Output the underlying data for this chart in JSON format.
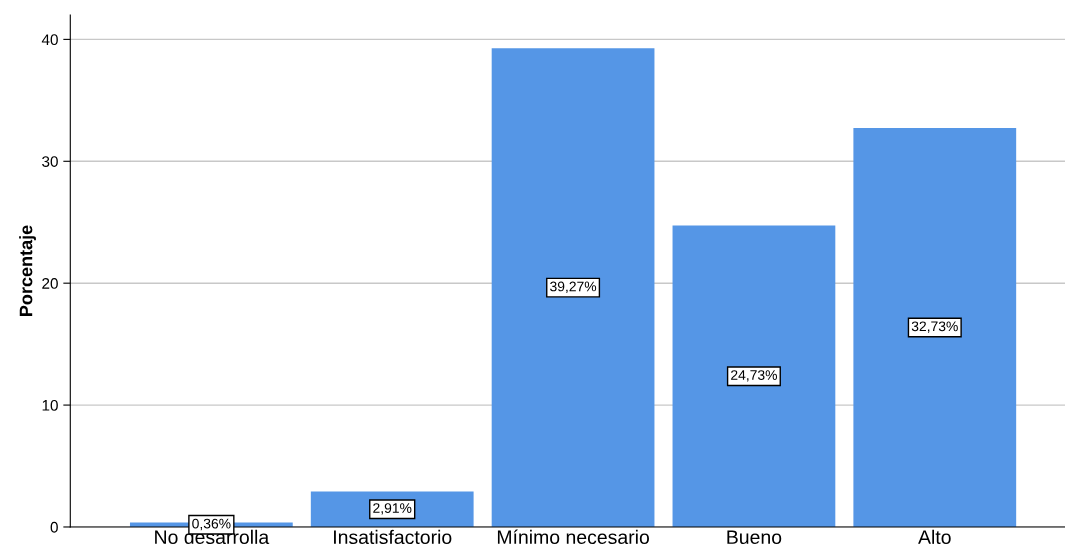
{
  "chart_data": {
    "type": "bar",
    "ylabel": "Porcentaje",
    "categories": [
      "No desarrolla",
      "Insatisfactorio",
      "Mínimo necesario",
      "Bueno",
      "Alto"
    ],
    "values": [
      0.36,
      2.91,
      39.27,
      24.73,
      32.73
    ],
    "value_labels": [
      "0,36%",
      "2,91%",
      "39,27%",
      "24,73%",
      "32,73%"
    ],
    "color": "#5596e6",
    "ylim": [
      0,
      42
    ],
    "yticks": [
      0,
      10,
      20,
      30,
      40
    ],
    "grid": "y"
  }
}
